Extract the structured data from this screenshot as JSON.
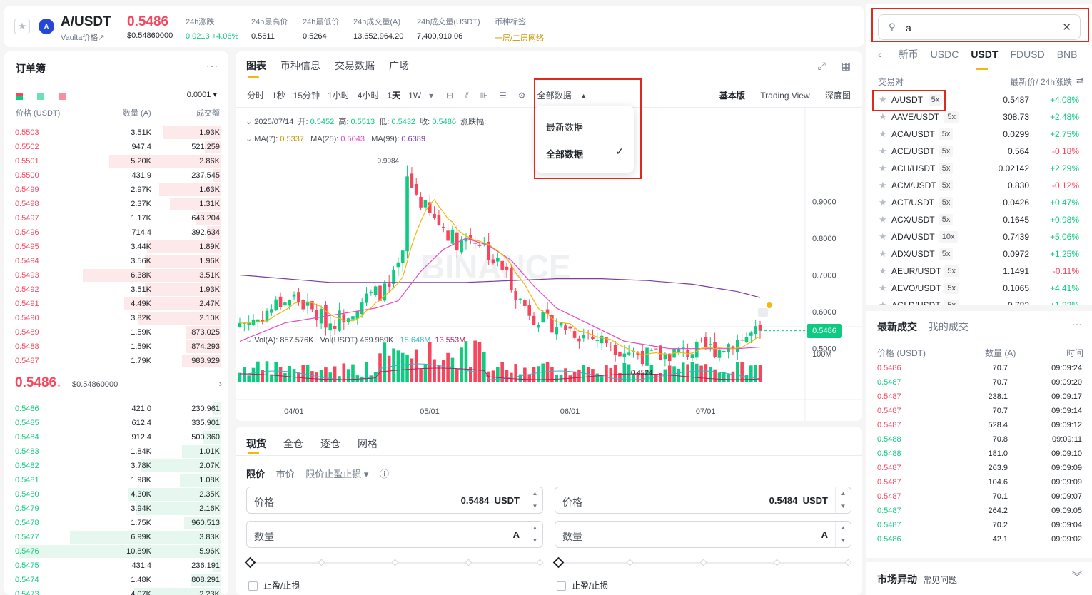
{
  "header": {
    "star": "★",
    "logo": "A",
    "symbol": "A/USDT",
    "sub_label": "Vaulta价格",
    "sub_arrow": "↗",
    "last_price": "0.5486",
    "last_price_usd": "$0.54860000",
    "stats": [
      {
        "label": "24h涨跌",
        "value": "0.0213 +4.06%",
        "color": "#0ecb81"
      },
      {
        "label": "24h最高价",
        "value": "0.5611",
        "color": "#1e2329"
      },
      {
        "label": "24h最低价",
        "value": "0.5264",
        "color": "#1e2329"
      },
      {
        "label": "24h成交量(A)",
        "value": "13,652,964.20",
        "color": "#1e2329"
      },
      {
        "label": "24h成交量(USDT)",
        "value": "7,400,910.06",
        "color": "#1e2329"
      },
      {
        "label": "币种标签",
        "value": "一层/二层网络",
        "color": "#c99400"
      }
    ]
  },
  "orderbook": {
    "title": "订单簿",
    "more": "···",
    "tick": "0.0001 ▾",
    "headers": {
      "price": "价格 (USDT)",
      "qty": "数量 (A)",
      "total": "成交额"
    },
    "asks": [
      {
        "p": "0.5503",
        "q": "3.51K",
        "t": "1.93K",
        "depth": 0.28
      },
      {
        "p": "0.5502",
        "q": "947.4",
        "t": "521.259",
        "depth": 0.08
      },
      {
        "p": "0.5501",
        "q": "5.20K",
        "t": "2.86K",
        "depth": 0.54
      },
      {
        "p": "0.5500",
        "q": "431.9",
        "t": "237.545",
        "depth": 0.04
      },
      {
        "p": "0.5499",
        "q": "2.97K",
        "t": "1.63K",
        "depth": 0.3
      },
      {
        "p": "0.5498",
        "q": "2.37K",
        "t": "1.31K",
        "depth": 0.25
      },
      {
        "p": "0.5497",
        "q": "1.17K",
        "t": "643.204",
        "depth": 0.12
      },
      {
        "p": "0.5496",
        "q": "714.4",
        "t": "392.634",
        "depth": 0.07
      },
      {
        "p": "0.5495",
        "q": "3.44K",
        "t": "1.89K",
        "depth": 0.36
      },
      {
        "p": "0.5494",
        "q": "3.56K",
        "t": "1.96K",
        "depth": 0.37
      },
      {
        "p": "0.5493",
        "q": "6.38K",
        "t": "3.51K",
        "depth": 0.67
      },
      {
        "p": "0.5492",
        "q": "3.51K",
        "t": "1.93K",
        "depth": 0.37
      },
      {
        "p": "0.5491",
        "q": "4.49K",
        "t": "2.47K",
        "depth": 0.47
      },
      {
        "p": "0.5490",
        "q": "3.82K",
        "t": "2.10K",
        "depth": 0.4
      },
      {
        "p": "0.5489",
        "q": "1.59K",
        "t": "873.025",
        "depth": 0.17
      },
      {
        "p": "0.5488",
        "q": "1.59K",
        "t": "874.293",
        "depth": 0.17
      },
      {
        "p": "0.5487",
        "q": "1.79K",
        "t": "983.929",
        "depth": 0.19
      }
    ],
    "mid_price": "0.5486",
    "mid_arrow": "↓",
    "mid_usd": "$0.54860000",
    "mid_more": "›",
    "bids": [
      {
        "p": "0.5486",
        "q": "421.0",
        "t": "230.961",
        "depth": 0.04
      },
      {
        "p": "0.5485",
        "q": "612.4",
        "t": "335.901",
        "depth": 0.06
      },
      {
        "p": "0.5484",
        "q": "912.4",
        "t": "500.360",
        "depth": 0.09
      },
      {
        "p": "0.5483",
        "q": "1.84K",
        "t": "1.01K",
        "depth": 0.19
      },
      {
        "p": "0.5482",
        "q": "3.78K",
        "t": "2.07K",
        "depth": 0.39
      },
      {
        "p": "0.5481",
        "q": "1.98K",
        "t": "1.08K",
        "depth": 0.2
      },
      {
        "p": "0.5480",
        "q": "4.30K",
        "t": "2.35K",
        "depth": 0.45
      },
      {
        "p": "0.5479",
        "q": "3.94K",
        "t": "2.16K",
        "depth": 0.41
      },
      {
        "p": "0.5478",
        "q": "1.75K",
        "t": "960.513",
        "depth": 0.18
      },
      {
        "p": "0.5477",
        "q": "6.99K",
        "t": "3.83K",
        "depth": 0.73
      },
      {
        "p": "0.5476",
        "q": "10.89K",
        "t": "5.96K",
        "depth": 0.98
      },
      {
        "p": "0.5475",
        "q": "431.4",
        "t": "236.191",
        "depth": 0.04
      },
      {
        "p": "0.5474",
        "q": "1.48K",
        "t": "808.291",
        "depth": 0.15
      },
      {
        "p": "0.5473",
        "q": "4.07K",
        "t": "2.23K",
        "depth": 0.42
      }
    ]
  },
  "chart": {
    "tabs": [
      "图表",
      "币种信息",
      "交易数据",
      "广场"
    ],
    "top_icons": [
      "⤢",
      "▦"
    ],
    "intervals": [
      "分时",
      "1秒",
      "15分钟",
      "1小时",
      "4小时",
      "1天",
      "1W"
    ],
    "interval_more": "▾",
    "tool_icons": [
      "⊟",
      "⫽",
      "⊪",
      "☰",
      "⚙"
    ],
    "data_range": "全部数据",
    "data_range_arrow": "▴",
    "dropdown": {
      "opt1": "最新数据",
      "opt2": "全部数据",
      "check": "✓"
    },
    "views": [
      "基本版",
      "Trading View",
      "深度图"
    ],
    "ohlc": {
      "date": "2025/07/14",
      "open_label": "开:",
      "open": "0.5452",
      "high_label": "高:",
      "high": "0.5513",
      "low_label": "低:",
      "low": "0.5432",
      "close_label": "收:",
      "close": "0.5486",
      "amp_label": "涨跌幅:"
    },
    "ma": {
      "ma7_label": "MA(7):",
      "ma7": "0.5337",
      "ma25_label": "MA(25):",
      "ma25": "0.5043",
      "ma99_label": "MA(99):",
      "ma99": "0.6389"
    },
    "vol": {
      "vol_a_label": "Vol(A):",
      "vol_a": "857.576K",
      "vol_usdt_label": "Vol(USDT)",
      "vol_usdt": "469.989K",
      "v1": "18.648M",
      "v2": "13.553M"
    },
    "watermark": "BINANCE",
    "current_price_tag": "0.5486",
    "max_label": "0.9984",
    "min_label": "0.4524",
    "colors": {
      "up": "#0ecb81",
      "down": "#f6465d",
      "ma7": "#f0b90b",
      "ma25": "#e64ac1",
      "ma99": "#7b3f9e"
    }
  },
  "chart_data": {
    "type": "candlestick",
    "title": "A/USDT 1天",
    "yticks": [
      0.9,
      0.8,
      0.7,
      0.6,
      0.5
    ],
    "ylim": [
      0.42,
      1.04
    ],
    "vol_tick": "100M",
    "xticks": [
      "04/01",
      "05/01",
      "06/01",
      "07/01"
    ],
    "x_range": [
      "2025-03-20",
      "2025-07-14"
    ],
    "max": {
      "date": "2025-04-26",
      "price": 0.9984
    },
    "min": {
      "date": "2025-06-22",
      "price": 0.4524
    },
    "close_path": [
      [
        0,
        0.57
      ],
      [
        4,
        0.58
      ],
      [
        8,
        0.62
      ],
      [
        12,
        0.64
      ],
      [
        16,
        0.6
      ],
      [
        20,
        0.57
      ],
      [
        24,
        0.6
      ],
      [
        27,
        0.63
      ],
      [
        30,
        0.65
      ],
      [
        33,
        0.66
      ],
      [
        36,
        0.75
      ],
      [
        37,
        0.96
      ],
      [
        39,
        0.92
      ],
      [
        42,
        0.86
      ],
      [
        45,
        0.83
      ],
      [
        48,
        0.79
      ],
      [
        50,
        0.8
      ],
      [
        52,
        0.8
      ],
      [
        54,
        0.78
      ],
      [
        56,
        0.74
      ],
      [
        58,
        0.72
      ],
      [
        60,
        0.68
      ],
      [
        62,
        0.63
      ],
      [
        65,
        0.59
      ],
      [
        68,
        0.57
      ],
      [
        72,
        0.56
      ],
      [
        75,
        0.54
      ],
      [
        78,
        0.53
      ],
      [
        81,
        0.52
      ],
      [
        84,
        0.5
      ],
      [
        87,
        0.49
      ],
      [
        90,
        0.48
      ],
      [
        93,
        0.48
      ],
      [
        96,
        0.49
      ],
      [
        99,
        0.49
      ],
      [
        102,
        0.5
      ],
      [
        106,
        0.5
      ],
      [
        109,
        0.52
      ],
      [
        112,
        0.53
      ],
      [
        115,
        0.5486
      ]
    ],
    "ma25_path": [
      [
        0,
        0.52
      ],
      [
        10,
        0.57
      ],
      [
        20,
        0.59
      ],
      [
        30,
        0.61
      ],
      [
        35,
        0.63
      ],
      [
        40,
        0.71
      ],
      [
        45,
        0.77
      ],
      [
        50,
        0.8
      ],
      [
        55,
        0.78
      ],
      [
        60,
        0.74
      ],
      [
        65,
        0.67
      ],
      [
        70,
        0.61
      ],
      [
        75,
        0.58
      ],
      [
        80,
        0.55
      ],
      [
        85,
        0.52
      ],
      [
        90,
        0.51
      ],
      [
        95,
        0.5
      ],
      [
        100,
        0.5
      ],
      [
        105,
        0.5
      ],
      [
        110,
        0.5
      ],
      [
        115,
        0.5043
      ]
    ],
    "ma99_path": [
      [
        0,
        0.7
      ],
      [
        10,
        0.69
      ],
      [
        20,
        0.68
      ],
      [
        30,
        0.68
      ],
      [
        40,
        0.68
      ],
      [
        50,
        0.68
      ],
      [
        60,
        0.685
      ],
      [
        70,
        0.69
      ],
      [
        80,
        0.69
      ],
      [
        90,
        0.685
      ],
      [
        100,
        0.675
      ],
      [
        110,
        0.655
      ],
      [
        115,
        0.6389
      ]
    ]
  },
  "trade": {
    "tabs": [
      "现货",
      "全仓",
      "逐仓",
      "网格"
    ],
    "order_types": [
      "限价",
      "市价",
      "限价止盈止损 ▾"
    ],
    "info_icon": "ⓘ",
    "left": {
      "price_label": "价格",
      "price_value": "0.5484",
      "price_unit": "USDT",
      "qty_label": "数量",
      "qty_unit": "A",
      "tpsl": "止盈/止损"
    },
    "right": {
      "price_label": "价格",
      "price_value": "0.5484",
      "price_unit": "USDT",
      "qty_label": "数量",
      "qty_unit": "A",
      "tpsl": "止盈/止损"
    },
    "spin_up": "▲",
    "spin_down": "▼"
  },
  "markets": {
    "search_icon": "⚲",
    "search_value": "a",
    "clear_icon": "✕",
    "left_arrow": "‹",
    "quote_tabs": [
      "新币",
      "USDC",
      "USDT",
      "FDUSD",
      "BNB"
    ],
    "head_pair": "交易对",
    "head_price": "最新价/ 24h涨跌",
    "head_swap": "⇄",
    "rows": [
      {
        "pair": "A/USDT",
        "lev": "5x",
        "price": "0.5487",
        "chg": "+4.08%",
        "up": true
      },
      {
        "pair": "AAVE/USDT",
        "lev": "5x",
        "price": "308.73",
        "chg": "+2.48%",
        "up": true
      },
      {
        "pair": "ACA/USDT",
        "lev": "5x",
        "price": "0.0299",
        "chg": "+2.75%",
        "up": true
      },
      {
        "pair": "ACE/USDT",
        "lev": "5x",
        "price": "0.564",
        "chg": "-0.18%",
        "up": false
      },
      {
        "pair": "ACH/USDT",
        "lev": "5x",
        "price": "0.02142",
        "chg": "+2.29%",
        "up": true
      },
      {
        "pair": "ACM/USDT",
        "lev": "5x",
        "price": "0.830",
        "chg": "-0.12%",
        "up": false
      },
      {
        "pair": "ACT/USDT",
        "lev": "5x",
        "price": "0.0426",
        "chg": "+0.47%",
        "up": true
      },
      {
        "pair": "ACX/USDT",
        "lev": "5x",
        "price": "0.1645",
        "chg": "+0.98%",
        "up": true
      },
      {
        "pair": "ADA/USDT",
        "lev": "10x",
        "price": "0.7439",
        "chg": "+5.06%",
        "up": true
      },
      {
        "pair": "ADX/USDT",
        "lev": "5x",
        "price": "0.0972",
        "chg": "+1.25%",
        "up": true
      },
      {
        "pair": "AEUR/USDT",
        "lev": "5x",
        "price": "1.1491",
        "chg": "-0.11%",
        "up": false
      },
      {
        "pair": "AEVO/USDT",
        "lev": "5x",
        "price": "0.1065",
        "chg": "+4.41%",
        "up": true
      },
      {
        "pair": "AGLD/USDT",
        "lev": "5x",
        "price": "0.782",
        "chg": "+1.83%",
        "up": true
      }
    ]
  },
  "trades": {
    "tabs": [
      "最新成交",
      "我的成交"
    ],
    "more": "···",
    "headers": {
      "price": "价格 (USDT)",
      "qty": "数量 (A)",
      "time": "时间"
    },
    "rows": [
      {
        "p": "0.5486",
        "q": "70.7",
        "t": "09:09:24",
        "up": false
      },
      {
        "p": "0.5487",
        "q": "70.7",
        "t": "09:09:20",
        "up": true
      },
      {
        "p": "0.5487",
        "q": "238.1",
        "t": "09:09:17",
        "up": false
      },
      {
        "p": "0.5487",
        "q": "70.7",
        "t": "09:09:14",
        "up": false
      },
      {
        "p": "0.5487",
        "q": "528.4",
        "t": "09:09:12",
        "up": false
      },
      {
        "p": "0.5488",
        "q": "70.8",
        "t": "09:09:11",
        "up": true
      },
      {
        "p": "0.5488",
        "q": "181.0",
        "t": "09:09:10",
        "up": true
      },
      {
        "p": "0.5487",
        "q": "263.9",
        "t": "09:09:09",
        "up": false
      },
      {
        "p": "0.5487",
        "q": "104.6",
        "t": "09:09:09",
        "up": false
      },
      {
        "p": "0.5487",
        "q": "70.1",
        "t": "09:09:07",
        "up": false
      },
      {
        "p": "0.5487",
        "q": "264.2",
        "t": "09:09:05",
        "up": true
      },
      {
        "p": "0.5487",
        "q": "70.2",
        "t": "09:09:04",
        "up": true
      },
      {
        "p": "0.5486",
        "q": "42.1",
        "t": "09:09:02",
        "up": true
      }
    ]
  },
  "market_activity": {
    "title": "市场异动",
    "faq": "常见问题",
    "collapse": "︾"
  }
}
